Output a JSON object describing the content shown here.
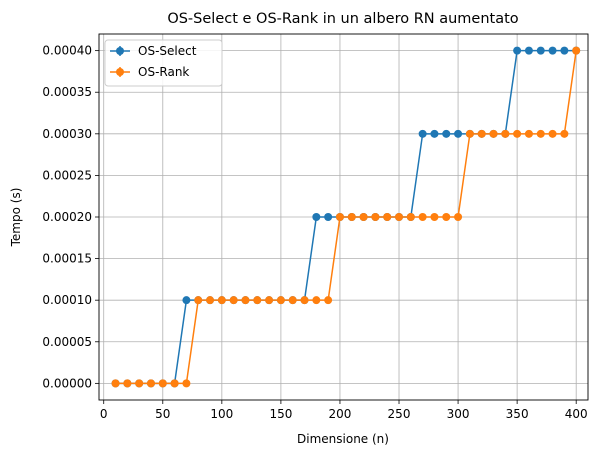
{
  "chart_data": {
    "type": "line",
    "title": "OS-Select e OS-Rank in un albero RN aumentato",
    "xlabel": "Dimensione (n)",
    "ylabel": "Tempo (s)",
    "xlim": [
      -4,
      410
    ],
    "ylim": [
      -2e-05,
      0.00042
    ],
    "xticks": [
      0,
      50,
      100,
      150,
      200,
      250,
      300,
      350,
      400
    ],
    "xtick_labels": [
      "0",
      "50",
      "100",
      "150",
      "200",
      "250",
      "300",
      "350",
      "400"
    ],
    "yticks": [
      0,
      5e-05,
      0.0001,
      0.00015,
      0.0002,
      0.00025,
      0.0003,
      0.00035,
      0.0004
    ],
    "ytick_labels": [
      "0.00000",
      "0.00005",
      "0.00010",
      "0.00015",
      "0.00020",
      "0.00025",
      "0.00030",
      "0.00035",
      "0.00040"
    ],
    "grid": true,
    "legend_position": "top-left",
    "x": [
      10,
      20,
      30,
      40,
      50,
      60,
      70,
      80,
      90,
      100,
      110,
      120,
      130,
      140,
      150,
      160,
      170,
      180,
      190,
      200,
      210,
      220,
      230,
      240,
      250,
      260,
      270,
      280,
      290,
      300,
      310,
      320,
      330,
      340,
      350,
      360,
      370,
      380,
      390,
      400
    ],
    "series": [
      {
        "name": "OS-Select",
        "color": "#1f77b4",
        "values": [
          0,
          0,
          0,
          0,
          0,
          0,
          0.0001,
          0.0001,
          0.0001,
          0.0001,
          0.0001,
          0.0001,
          0.0001,
          0.0001,
          0.0001,
          0.0001,
          0.0001,
          0.0002,
          0.0002,
          0.0002,
          0.0002,
          0.0002,
          0.0002,
          0.0002,
          0.0002,
          0.0002,
          0.0003,
          0.0003,
          0.0003,
          0.0003,
          0.0003,
          0.0003,
          0.0003,
          0.0003,
          0.0004,
          0.0004,
          0.0004,
          0.0004,
          0.0004,
          0.0004
        ]
      },
      {
        "name": "OS-Rank",
        "color": "#ff7f0e",
        "values": [
          0,
          0,
          0,
          0,
          0,
          0,
          0,
          0.0001,
          0.0001,
          0.0001,
          0.0001,
          0.0001,
          0.0001,
          0.0001,
          0.0001,
          0.0001,
          0.0001,
          0.0001,
          0.0001,
          0.0002,
          0.0002,
          0.0002,
          0.0002,
          0.0002,
          0.0002,
          0.0002,
          0.0002,
          0.0002,
          0.0002,
          0.0002,
          0.0003,
          0.0003,
          0.0003,
          0.0003,
          0.0003,
          0.0003,
          0.0003,
          0.0003,
          0.0003,
          0.0004
        ]
      }
    ]
  }
}
